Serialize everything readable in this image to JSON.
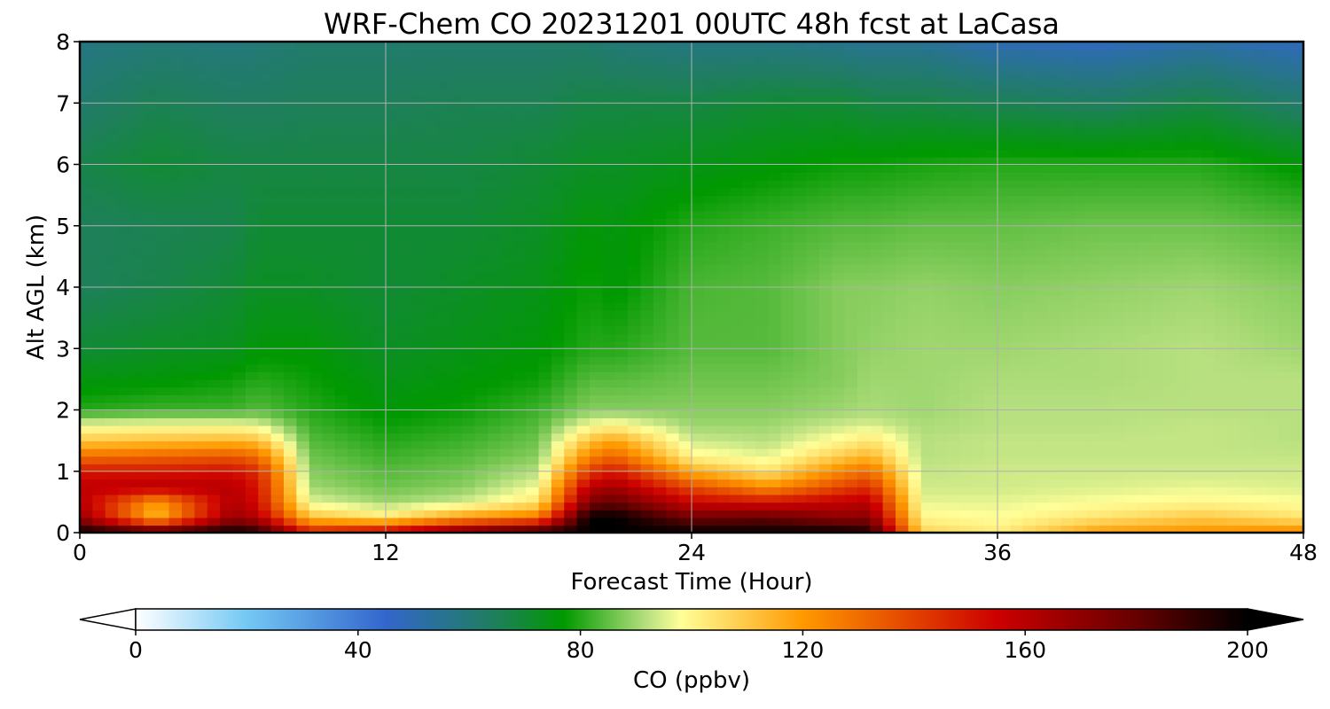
{
  "chart_data": {
    "type": "heatmap",
    "title": "WRF-Chem CO  20231201 00UTC 48h fcst at LaCasa",
    "xlabel": "Forecast Time (Hour)",
    "ylabel": "Alt AGL (km)",
    "xlim": [
      0,
      48
    ],
    "ylim": [
      0,
      8
    ],
    "x_ticks": [
      "0",
      "12",
      "24",
      "36",
      "48"
    ],
    "y_ticks": [
      "0",
      "1",
      "2",
      "3",
      "4",
      "5",
      "6",
      "7",
      "8"
    ],
    "grid": true,
    "colorbar": {
      "label": "CO  (ppbv)",
      "range": [
        0,
        200
      ],
      "ticks": [
        "0",
        "40",
        "80",
        "120",
        "160",
        "200"
      ],
      "extend": "both",
      "stops": [
        {
          "v": 0,
          "c": "#ffffff"
        },
        {
          "v": 20,
          "c": "#74c8f4"
        },
        {
          "v": 45,
          "c": "#3366cc"
        },
        {
          "v": 65,
          "c": "#1e7f5a"
        },
        {
          "v": 77,
          "c": "#009900"
        },
        {
          "v": 92,
          "c": "#b8e080"
        },
        {
          "v": 98,
          "c": "#ffff99"
        },
        {
          "v": 120,
          "c": "#ff9900"
        },
        {
          "v": 155,
          "c": "#cc0000"
        },
        {
          "v": 180,
          "c": "#660000"
        },
        {
          "v": 200,
          "c": "#000000"
        }
      ]
    },
    "profile_columns": {
      "hours": [
        0,
        3,
        6,
        7,
        9,
        12,
        15,
        18,
        20,
        21,
        24,
        27,
        30,
        31,
        33,
        36,
        40,
        44,
        48
      ],
      "altitudes_km": [
        0,
        0.25,
        0.5,
        0.75,
        1,
        1.25,
        1.5,
        1.75,
        2,
        2.5,
        3,
        4,
        5,
        6,
        7,
        8
      ],
      "co_ppbv": [
        [
          200,
          168,
          160,
          158,
          150,
          130,
          110,
          97,
          80,
          75,
          70,
          65,
          65,
          67,
          62,
          58
        ],
        [
          190,
          112,
          118,
          160,
          150,
          132,
          112,
          98,
          82,
          76,
          72,
          67,
          66,
          70,
          66,
          60
        ],
        [
          200,
          168,
          162,
          160,
          152,
          135,
          114,
          98,
          82,
          78,
          73,
          70,
          67,
          68,
          64,
          59
        ],
        [
          195,
          160,
          152,
          150,
          145,
          130,
          112,
          96,
          84,
          80,
          76,
          72,
          70,
          68,
          64,
          60
        ],
        [
          150,
          112,
          96,
          90,
          88,
          86,
          84,
          82,
          80,
          78,
          76,
          72,
          70,
          68,
          65,
          62
        ],
        [
          160,
          104,
          90,
          86,
          84,
          82,
          80,
          78,
          76,
          74,
          72,
          70,
          70,
          68,
          65,
          62
        ],
        [
          180,
          120,
          94,
          88,
          86,
          84,
          82,
          80,
          78,
          76,
          74,
          72,
          70,
          68,
          66,
          62
        ],
        [
          195,
          128,
          104,
          97,
          92,
          88,
          86,
          84,
          82,
          78,
          76,
          74,
          72,
          70,
          66,
          62
        ],
        [
          200,
          200,
          175,
          160,
          142,
          125,
          112,
          98,
          88,
          84,
          80,
          78,
          76,
          72,
          68,
          62
        ],
        [
          200,
          200,
          180,
          165,
          150,
          132,
          118,
          100,
          88,
          84,
          80,
          76,
          75,
          72,
          68,
          60
        ],
        [
          200,
          178,
          155,
          138,
          116,
          100,
          94,
          90,
          88,
          86,
          84,
          83,
          80,
          74,
          68,
          58
        ],
        [
          200,
          180,
          152,
          122,
          104,
          96,
          92,
          90,
          88,
          86,
          84,
          84,
          82,
          76,
          70,
          58
        ],
        [
          200,
          170,
          158,
          140,
          125,
          110,
          100,
          94,
          90,
          88,
          88,
          88,
          84,
          78,
          70,
          56
        ],
        [
          195,
          172,
          160,
          145,
          130,
          114,
          104,
          95,
          91,
          90,
          89,
          88,
          84,
          78,
          68,
          55
        ],
        [
          108,
          100,
          96,
          94,
          93,
          92,
          92,
          91,
          90,
          90,
          90,
          89,
          85,
          79,
          68,
          55
        ],
        [
          102,
          98,
          96,
          94,
          94,
          93,
          93,
          92,
          92,
          91,
          90,
          88,
          85,
          80,
          66,
          50
        ],
        [
          120,
          104,
          98,
          95,
          94,
          93,
          93,
          92,
          92,
          91,
          91,
          89,
          86,
          80,
          64,
          48
        ],
        [
          122,
          110,
          100,
          96,
          94,
          93,
          93,
          93,
          92,
          92,
          92,
          90,
          86,
          80,
          68,
          52
        ],
        [
          125,
          104,
          98,
          95,
          94,
          93,
          92,
          92,
          92,
          92,
          90,
          88,
          84,
          76,
          62,
          48
        ]
      ]
    }
  }
}
